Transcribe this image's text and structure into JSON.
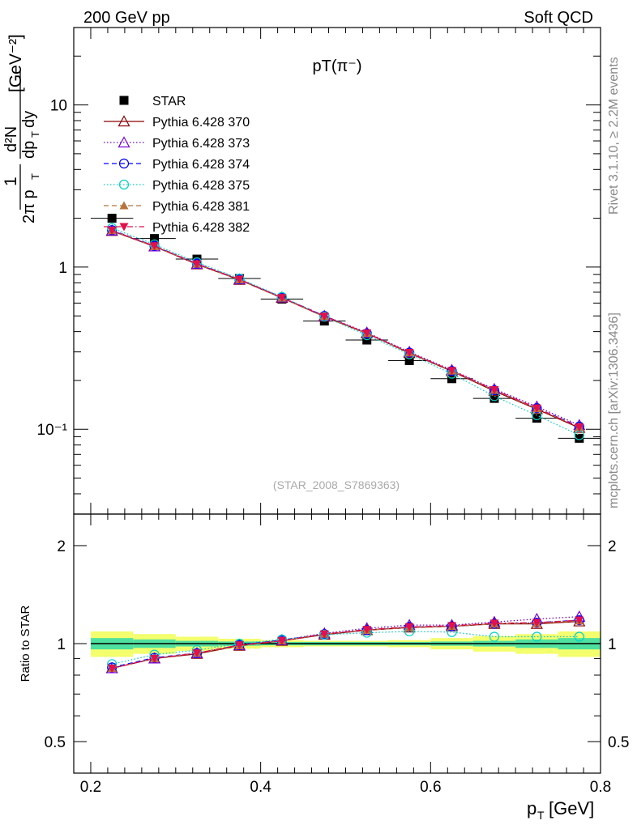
{
  "header": {
    "left": "200 GeV pp",
    "right": "Soft QCD"
  },
  "side_text": {
    "rivet": "Rivet 3.1.10, ≥ 2.2M events",
    "mcplots": "mcplots.cern.ch [arXiv:1306.3436]"
  },
  "main_panel": {
    "title": "pT(π⁻)",
    "ylabel": "1/(2π pT) d²N/(dpT dy) [GeV⁻²]",
    "watermark": "(STAR_2008_S7869363)",
    "y_ticks": [
      {
        "value": 10,
        "label": "10"
      },
      {
        "value": 1,
        "label": "1"
      },
      {
        "value": 0.1,
        "label": "10⁻¹"
      }
    ]
  },
  "ratio_panel": {
    "ylabel": "Ratio to STAR",
    "y_ticks": [
      {
        "value": 2,
        "label": "2"
      },
      {
        "value": 1,
        "label": "1"
      },
      {
        "value": 0.5,
        "label": "0.5"
      }
    ]
  },
  "xaxis": {
    "label": "pT [GeV]",
    "ticks": [
      {
        "value": 0.2,
        "label": "0.2"
      },
      {
        "value": 0.4,
        "label": "0.4"
      },
      {
        "value": 0.6,
        "label": "0.6"
      },
      {
        "value": 0.8,
        "label": "0.8"
      }
    ]
  },
  "chart_data": [
    {
      "type": "scatter",
      "title": "pT(π⁻)",
      "xlabel": "pT [GeV]",
      "ylabel": "1/(2π pT) d²N/(dpT dy) [GeV⁻²]",
      "xlim": [
        0.18,
        0.8
      ],
      "ylim": [
        0.03,
        30
      ],
      "y_scale": "log",
      "legend_position": "top-left",
      "x": [
        0.225,
        0.275,
        0.325,
        0.375,
        0.425,
        0.475,
        0.525,
        0.575,
        0.625,
        0.675,
        0.725,
        0.775
      ],
      "series": [
        {
          "name": "STAR",
          "color": "#000000",
          "marker": "square-filled",
          "line": "none",
          "values": [
            2.0,
            1.5,
            1.12,
            0.85,
            0.635,
            0.465,
            0.355,
            0.265,
            0.205,
            0.155,
            0.117,
            0.088
          ]
        },
        {
          "name": "Pythia 6.428 370",
          "color": "#8b0000",
          "marker": "triangle-up-open",
          "line": "solid",
          "values": [
            1.67,
            1.34,
            1.04,
            0.835,
            0.645,
            0.495,
            0.39,
            0.295,
            0.228,
            0.172,
            0.133,
            0.102
          ]
        },
        {
          "name": "Pythia 6.428 373",
          "color": "#7b00d4",
          "marker": "triangle-up-open",
          "line": "dotted",
          "values": [
            1.68,
            1.34,
            1.045,
            0.84,
            0.65,
            0.5,
            0.395,
            0.3,
            0.232,
            0.177,
            0.138,
            0.106
          ]
        },
        {
          "name": "Pythia 6.428 374",
          "color": "#0000ff",
          "marker": "circle-open",
          "line": "dashed",
          "values": [
            1.69,
            1.35,
            1.05,
            0.84,
            0.65,
            0.5,
            0.39,
            0.297,
            0.229,
            0.174,
            0.135,
            0.104
          ]
        },
        {
          "name": "Pythia 6.428 375",
          "color": "#00d2c8",
          "marker": "circle-open",
          "line": "dotted",
          "values": [
            1.74,
            1.38,
            1.07,
            0.85,
            0.655,
            0.495,
            0.38,
            0.29,
            0.22,
            0.16,
            0.122,
            0.092
          ]
        },
        {
          "name": "Pythia 6.428 381",
          "color": "#b8733a",
          "marker": "triangle-up-filled",
          "line": "dashed",
          "values": [
            1.68,
            1.34,
            1.045,
            0.835,
            0.645,
            0.497,
            0.39,
            0.296,
            0.229,
            0.174,
            0.134,
            0.103
          ]
        },
        {
          "name": "Pythia 6.428 382",
          "color": "#e0114d",
          "marker": "triangle-down-filled",
          "line": "dashdot",
          "values": [
            1.68,
            1.35,
            1.045,
            0.84,
            0.647,
            0.498,
            0.392,
            0.297,
            0.23,
            0.175,
            0.135,
            0.103
          ]
        }
      ]
    },
    {
      "type": "line",
      "ylabel": "Ratio to STAR",
      "xlabel": "pT [GeV]",
      "xlim": [
        0.18,
        0.8
      ],
      "ylim": [
        0.4,
        2.5
      ],
      "y_scale": "log",
      "x": [
        0.225,
        0.275,
        0.325,
        0.375,
        0.425,
        0.475,
        0.525,
        0.575,
        0.625,
        0.675,
        0.725,
        0.775
      ],
      "reference": 1.0,
      "bands": {
        "inner_color": "#4fe0a0",
        "outer_color": "#f4ff6e",
        "x_edges": [
          0.2,
          0.25,
          0.3,
          0.35,
          0.4,
          0.45,
          0.5,
          0.55,
          0.6,
          0.65,
          0.7,
          0.75,
          0.8
        ],
        "inner": [
          0.04,
          0.03,
          0.02,
          0.015,
          0.012,
          0.012,
          0.012,
          0.012,
          0.015,
          0.02,
          0.03,
          0.04
        ],
        "outer": [
          0.09,
          0.07,
          0.05,
          0.035,
          0.025,
          0.02,
          0.02,
          0.025,
          0.04,
          0.055,
          0.07,
          0.09
        ]
      },
      "series": [
        {
          "name": "Pythia 6.428 370",
          "color": "#8b0000",
          "marker": "triangle-up-open",
          "line": "solid",
          "values": [
            0.84,
            0.9,
            0.93,
            0.985,
            1.02,
            1.065,
            1.1,
            1.12,
            1.13,
            1.15,
            1.15,
            1.17
          ]
        },
        {
          "name": "Pythia 6.428 373",
          "color": "#7b00d4",
          "marker": "triangle-up-open",
          "line": "dotted",
          "values": [
            0.84,
            0.9,
            0.935,
            0.99,
            1.025,
            1.075,
            1.115,
            1.14,
            1.14,
            1.165,
            1.19,
            1.21
          ]
        },
        {
          "name": "Pythia 6.428 374",
          "color": "#0000ff",
          "marker": "circle-open",
          "line": "dashed",
          "values": [
            0.845,
            0.905,
            0.935,
            0.99,
            1.025,
            1.07,
            1.1,
            1.125,
            1.13,
            1.15,
            1.16,
            1.18
          ]
        },
        {
          "name": "Pythia 6.428 375",
          "color": "#00d2c8",
          "marker": "circle-open",
          "line": "dotted",
          "values": [
            0.865,
            0.925,
            0.955,
            1.0,
            1.03,
            1.065,
            1.08,
            1.09,
            1.085,
            1.05,
            1.05,
            1.05
          ]
        },
        {
          "name": "Pythia 6.428 381",
          "color": "#b8733a",
          "marker": "triangle-up-filled",
          "line": "dashed",
          "values": [
            0.84,
            0.9,
            0.935,
            0.985,
            1.02,
            1.07,
            1.1,
            1.12,
            1.13,
            1.15,
            1.155,
            1.175
          ]
        },
        {
          "name": "Pythia 6.428 382",
          "color": "#e0114d",
          "marker": "triangle-down-filled",
          "line": "dashdot",
          "values": [
            0.84,
            0.9,
            0.935,
            0.99,
            1.02,
            1.07,
            1.105,
            1.125,
            1.135,
            1.155,
            1.16,
            1.18
          ]
        }
      ]
    }
  ]
}
